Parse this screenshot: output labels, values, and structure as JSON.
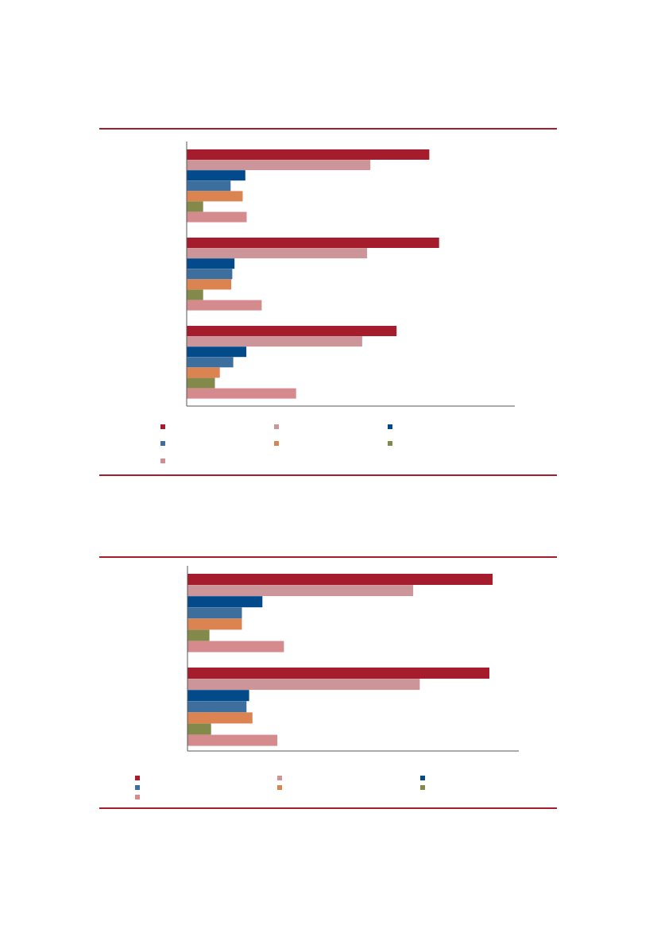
{
  "colors": {
    "rule": "#a51c2c",
    "axis": "#555555"
  },
  "chart_data": [
    {
      "type": "bar",
      "orientation": "horizontal",
      "grid": false,
      "legend_placement": "bottom",
      "xlim": [
        0,
        100
      ],
      "categories": [
        "",
        "",
        ""
      ],
      "series": [
        {
          "color": "#a51c2c",
          "values": [
            74,
            77,
            64
          ]
        },
        {
          "color": "#cc9599",
          "values": [
            56,
            55,
            53.5
          ]
        },
        {
          "color": "#034a8a",
          "values": [
            17.8,
            14.5,
            18.1
          ]
        },
        {
          "color": "#3d6f9e",
          "values": [
            13.3,
            13.8,
            14.1
          ]
        },
        {
          "color": "#dc8451",
          "values": [
            17,
            13.5,
            10
          ]
        },
        {
          "color": "#83894a",
          "values": [
            4.9,
            4.9,
            8.5
          ]
        },
        {
          "color": "#d58a8e",
          "values": [
            18.2,
            22.8,
            33.3
          ]
        }
      ]
    },
    {
      "type": "bar",
      "orientation": "horizontal",
      "grid": false,
      "legend_placement": "bottom",
      "xlim": [
        0,
        100
      ],
      "categories": [
        "",
        ""
      ],
      "series": [
        {
          "color": "#a51c2c",
          "values": [
            92,
            91
          ]
        },
        {
          "color": "#cc9599",
          "values": [
            68,
            70
          ]
        },
        {
          "color": "#034a8a",
          "values": [
            22.5,
            18.5
          ]
        },
        {
          "color": "#3d6f9e",
          "values": [
            16.3,
            17.7
          ]
        },
        {
          "color": "#dc8451",
          "values": [
            16.3,
            19.5
          ]
        },
        {
          "color": "#83894a",
          "values": [
            6.5,
            7
          ]
        },
        {
          "color": "#d58a8e",
          "values": [
            29,
            27
          ]
        }
      ]
    }
  ]
}
